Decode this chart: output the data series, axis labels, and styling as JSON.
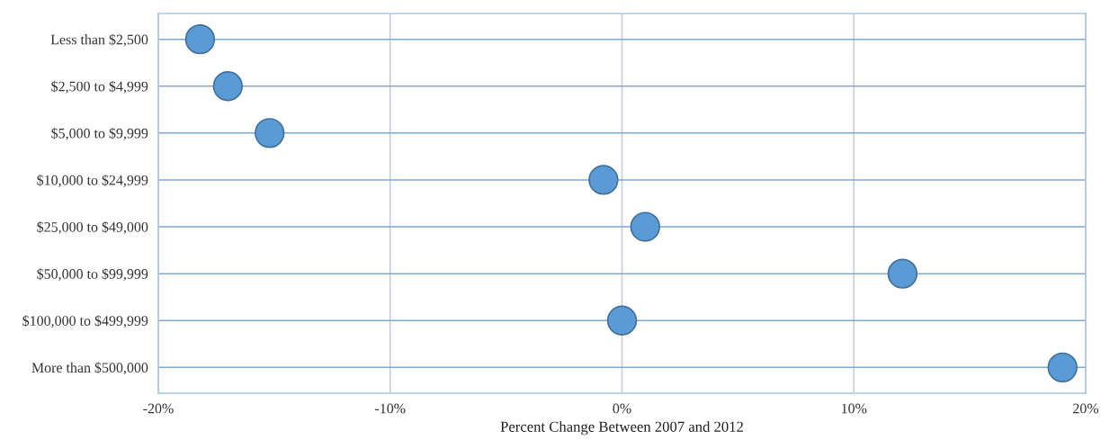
{
  "chart_data": {
    "type": "scatter",
    "orientation": "horizontal",
    "xlabel": "Percent Change Between 2007 and 2012",
    "categories": [
      "Less than $2,500",
      "$2,500 to $4,999",
      "$5,000 to $9,999",
      "$10,000 to $24,999",
      "$25,000 to $49,000",
      "$50,000 to $99,999",
      "$100,000 to $499,999",
      "More than $500,000"
    ],
    "values": [
      -18.2,
      -17.0,
      -15.2,
      -0.8,
      1.0,
      12.1,
      0.0,
      19.0
    ],
    "color": "#5b9bd5",
    "marker": "circle",
    "grid": true,
    "xlim": [
      -20,
      20
    ],
    "xticks": [
      {
        "value": -20,
        "label": "-20%"
      },
      {
        "value": -10,
        "label": "-10%"
      },
      {
        "value": 0,
        "label": "0%"
      },
      {
        "value": 10,
        "label": "10%"
      },
      {
        "value": 20,
        "label": "20%"
      }
    ]
  }
}
